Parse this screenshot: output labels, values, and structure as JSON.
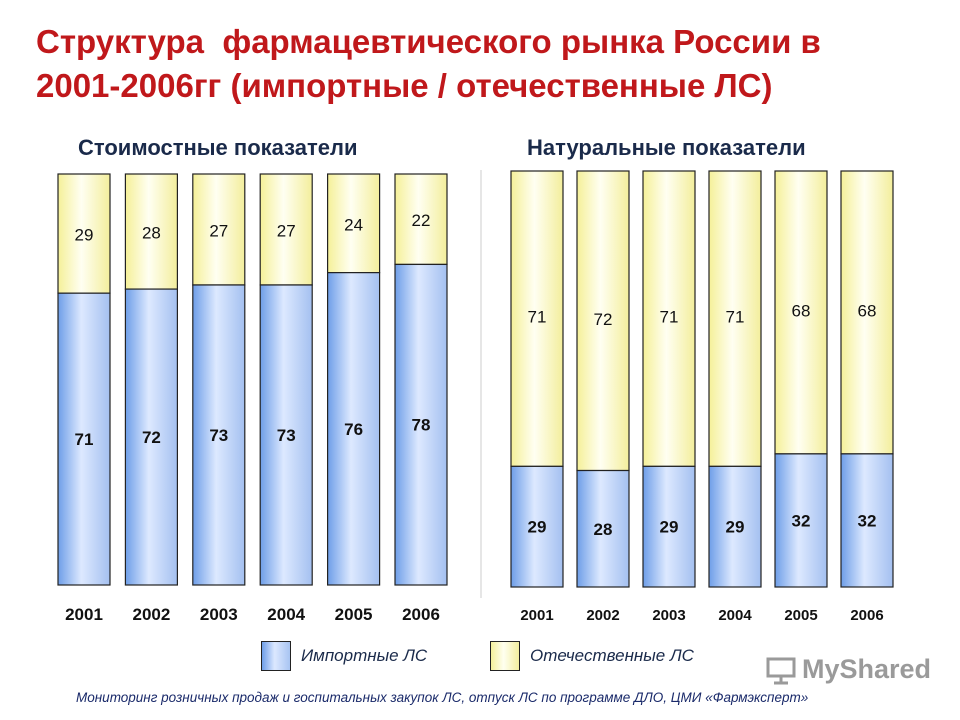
{
  "title": {
    "line1": "Структура  фармацевтического рынка России в",
    "line2": "2001-2006гг (импортные / отечественные ЛС)"
  },
  "colors": {
    "title": "#c0181b",
    "imported": "#bcd4ff",
    "domestic": "#fdfbc4"
  },
  "legend": {
    "imported": "Импортные ЛС",
    "domestic": "Отечественные  ЛС"
  },
  "footer": "Мониторинг розничных продаж  и госпитальных закупок ЛС, отпуск ЛС по программе ДЛО,  ЦМИ «Фармэксперт»",
  "watermark": "MyShared",
  "chart_data": [
    {
      "type": "bar",
      "stacked": true,
      "title": "Стоимостные показатели",
      "categories": [
        "2001",
        "2002",
        "2003",
        "2004",
        "2005",
        "2006"
      ],
      "series": [
        {
          "name": "Импортные ЛС",
          "values": [
            71,
            72,
            73,
            73,
            76,
            78
          ]
        },
        {
          "name": "Отечественные  ЛС",
          "values": [
            29,
            28,
            27,
            27,
            24,
            22
          ]
        }
      ],
      "ylim": [
        0,
        100
      ],
      "grid": false,
      "legend": "bottom"
    },
    {
      "type": "bar",
      "stacked": true,
      "title": "Натуральные  показатели",
      "categories": [
        "2001",
        "2002",
        "2003",
        "2004",
        "2005",
        "2006"
      ],
      "series": [
        {
          "name": "Импортные ЛС",
          "values": [
            29,
            28,
            29,
            29,
            32,
            32
          ]
        },
        {
          "name": "Отечественные  ЛС",
          "values": [
            71,
            72,
            71,
            71,
            68,
            68
          ]
        }
      ],
      "ylim": [
        0,
        100
      ],
      "grid": false,
      "legend": "bottom"
    }
  ]
}
